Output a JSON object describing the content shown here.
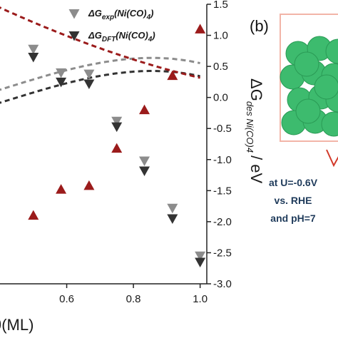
{
  "chart_data": {
    "type": "scatter",
    "xlabel_visible": "θ(ML)",
    "ylabel_right": {
      "delta": "ΔG",
      "sub": "des Ni(CO)4",
      "unit": "/ eV"
    },
    "xlim": [
      0.4,
      1.02
    ],
    "ylim": [
      -3.0,
      1.5
    ],
    "x_ticks": [
      "0.6",
      "0.8",
      "1.0"
    ],
    "x_tick_values": [
      0.6,
      0.8,
      1.0
    ],
    "y_ticks": [
      "1.5",
      "1.0",
      "0.5",
      "0.0",
      "-0.5",
      "-1.0",
      "-1.5",
      "-2.0",
      "-2.5",
      "-3.0"
    ],
    "y_tick_values": [
      1.5,
      1.0,
      0.5,
      0.0,
      -0.5,
      -1.0,
      -1.5,
      -2.0,
      -2.5,
      -3.0
    ],
    "legend_placement": "top-right",
    "series": [
      {
        "name": "ΔGexp(Ni(CO)4)",
        "name_main": "ΔG",
        "name_sub": "exp",
        "name_rest": "(Ni(CO)",
        "name_sub2": "4",
        "name_end": ")",
        "marker": "triangle-down",
        "color": "#8c8c8c",
        "x": [
          0.5,
          0.583,
          0.667,
          0.75,
          0.833,
          0.917,
          1.0
        ],
        "y": [
          0.78,
          0.4,
          0.38,
          -0.38,
          -1.02,
          -1.78,
          -2.55
        ]
      },
      {
        "name": "ΔGDFT(Ni(CO)4)",
        "name_main": "ΔG",
        "name_sub": "DFT",
        "name_rest": "(Ni(CO)",
        "name_sub2": "4",
        "name_end": ")",
        "marker": "triangle-down",
        "color": "#333333",
        "x": [
          0.5,
          0.583,
          0.667,
          0.75,
          0.833,
          0.917,
          1.0
        ],
        "y": [
          0.65,
          0.25,
          0.22,
          -0.47,
          -1.18,
          -1.95,
          -2.65
        ]
      },
      {
        "name": "",
        "marker": "triangle-up",
        "color": "#9b1b1b",
        "x": [
          0.5,
          0.583,
          0.667,
          0.75,
          0.833,
          0.917,
          1.0
        ],
        "y": [
          -1.9,
          -1.48,
          -1.42,
          -0.82,
          -0.2,
          0.35,
          1.1
        ]
      }
    ],
    "fits": [
      {
        "color": "#8c8c8c",
        "coef": [
          0.29,
          1.6,
          -0.78,
          -2.75
        ],
        "x0": 0.5
      },
      {
        "color": "#333333",
        "coef": [
          0.08,
          1.6,
          -0.78,
          -2.75
        ],
        "x0": 0.5
      },
      {
        "color": "#9b1b1b",
        "coef": [
          1.21,
          -2.27,
          0.84,
          0.25
        ],
        "x0": 0.5
      }
    ]
  },
  "panel_b": {
    "label": "(b)",
    "note_lines": [
      "at U=-0.6V",
      "vs. RHE",
      "and pH=7"
    ]
  },
  "colors": {
    "frame": "#f2b5a8",
    "cluster": "#3dbb6e",
    "cluster_dark": "#2a9a55",
    "arrow": "#d23a2a"
  }
}
